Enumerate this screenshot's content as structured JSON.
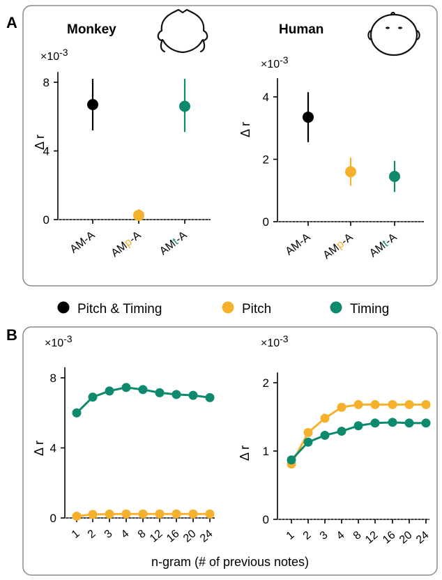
{
  "panels": {
    "a_label": "A",
    "b_label": "B"
  },
  "legend": {
    "items": [
      {
        "label": "Pitch & Timing",
        "color": "#000000"
      },
      {
        "label": "Pitch",
        "color": "#F5B12B"
      },
      {
        "label": "Timing",
        "color": "#0D8A6E"
      }
    ]
  },
  "icons": {
    "monkey": "monkey-head-icon",
    "human": "human-head-icon"
  },
  "chart_data": [
    {
      "id": "a-monkey",
      "type": "scatter",
      "title": "Monkey",
      "multiplier": "×10-3",
      "ylabel": "Δ r",
      "ylim": [
        0,
        8.6
      ],
      "yticks": [
        0,
        4,
        8
      ],
      "categories": [
        "AM-A",
        "AMp-A",
        "AMt-A"
      ],
      "points": [
        {
          "x": "AM-A",
          "y": 6.7,
          "low": 5.2,
          "high": 8.2,
          "color": "#000000"
        },
        {
          "x": "AMp-A",
          "y": 0.25,
          "low": 0.05,
          "high": 0.6,
          "color": "#F5B12B"
        },
        {
          "x": "AMt-A",
          "y": 6.6,
          "low": 5.1,
          "high": 8.2,
          "color": "#0D8A6E"
        }
      ]
    },
    {
      "id": "a-human",
      "type": "scatter",
      "title": "Human",
      "multiplier": "×10-3",
      "ylabel": "Δ r",
      "ylim": [
        0,
        4.6
      ],
      "yticks": [
        0,
        2,
        4
      ],
      "categories": [
        "AM-A",
        "AMp-A",
        "AMt-A"
      ],
      "points": [
        {
          "x": "AM-A",
          "y": 3.35,
          "low": 2.55,
          "high": 4.15,
          "color": "#000000"
        },
        {
          "x": "AMp-A",
          "y": 1.6,
          "low": 1.15,
          "high": 2.05,
          "color": "#F5B12B"
        },
        {
          "x": "AMt-A",
          "y": 1.45,
          "low": 0.95,
          "high": 1.95,
          "color": "#0D8A6E"
        }
      ]
    },
    {
      "id": "b-monkey",
      "type": "line",
      "multiplier": "×10-3",
      "ylabel": "Δ r",
      "ylim": [
        0,
        8.6
      ],
      "yticks": [
        0,
        4,
        8
      ],
      "xlabel": "n-gram (# of previous notes)",
      "x": [
        "1",
        "2",
        "3",
        "4",
        "8",
        "12",
        "16",
        "20",
        "24"
      ],
      "series": [
        {
          "color": "#F5B12B",
          "values": [
            0.1,
            0.2,
            0.22,
            0.23,
            0.23,
            0.23,
            0.23,
            0.23,
            0.23
          ]
        },
        {
          "color": "#0D8A6E",
          "values": [
            6.0,
            6.9,
            7.25,
            7.45,
            7.33,
            7.15,
            7.05,
            7.0,
            6.87
          ]
        }
      ]
    },
    {
      "id": "b-human",
      "type": "line",
      "multiplier": "×10-3",
      "ylabel": "Δ r",
      "ylim": [
        0,
        2.15
      ],
      "yticks": [
        0,
        1,
        2
      ],
      "xlabel": "n-gram (# of previous notes)",
      "x": [
        "1",
        "2",
        "3",
        "4",
        "8",
        "12",
        "16",
        "20",
        "24"
      ],
      "series": [
        {
          "color": "#F5B12B",
          "values": [
            0.81,
            1.27,
            1.48,
            1.64,
            1.68,
            1.68,
            1.68,
            1.68,
            1.68
          ]
        },
        {
          "color": "#0D8A6E",
          "values": [
            0.87,
            1.13,
            1.23,
            1.29,
            1.37,
            1.41,
            1.42,
            1.41,
            1.41
          ]
        }
      ]
    }
  ]
}
